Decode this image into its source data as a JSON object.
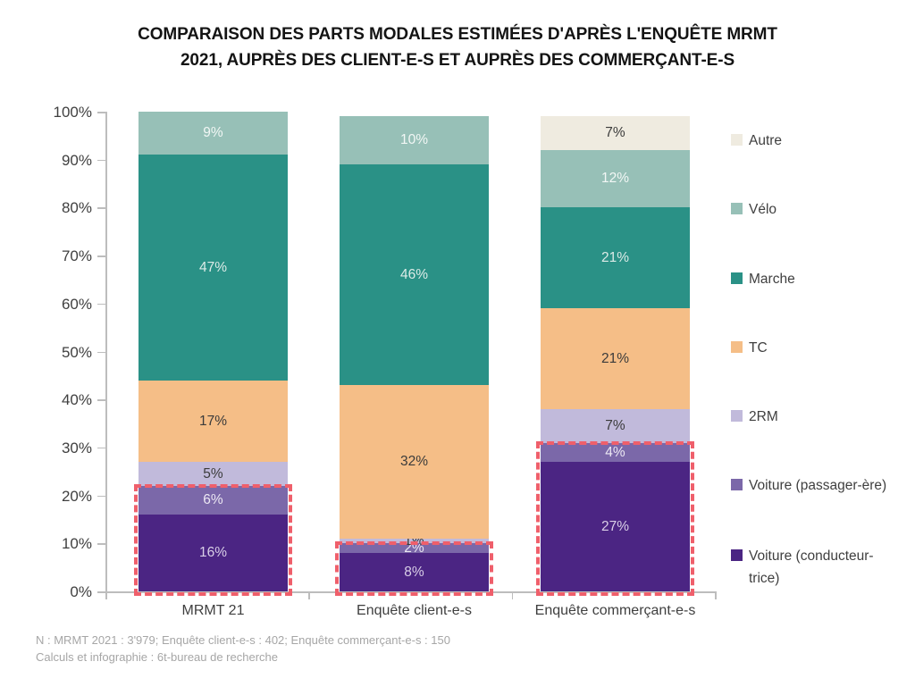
{
  "title": {
    "line1": "COMPARAISON DES PARTS MODALES ESTIMÉES D'APRÈS L'ENQUÊTE MRMT",
    "line2": "2021, AUPRÈS DES CLIENT-E-S ET AUPRÈS DES COMMERÇANT-E-S"
  },
  "chart_data": {
    "type": "bar",
    "stacked": true,
    "unit": "%",
    "categories": [
      "MRMT 21",
      "Enquête client-e-s",
      "Enquête commerçant-e-s"
    ],
    "series": [
      {
        "name": "Voiture (conducteur-trice)",
        "color": "#4b2583",
        "label_color": "#d9cfe7",
        "values": [
          16,
          8,
          27
        ]
      },
      {
        "name": "Voiture (passager-ère)",
        "color": "#7b68a9",
        "label_color": "#ece8f3",
        "values": [
          6,
          2,
          4
        ]
      },
      {
        "name": "2RM",
        "color": "#c1badb",
        "label_color": "#3b3b3b",
        "values": [
          5,
          1,
          7
        ]
      },
      {
        "name": "TC",
        "color": "#f5be87",
        "label_color": "#3b3b3b",
        "values": [
          17,
          32,
          21
        ]
      },
      {
        "name": "Marche",
        "color": "#2a9186",
        "label_color": "#dcebe7",
        "values": [
          47,
          46,
          21
        ]
      },
      {
        "name": "Vélo",
        "color": "#97c0b7",
        "label_color": "#f2f7f5",
        "values": [
          9,
          10,
          12
        ]
      },
      {
        "name": "Autre",
        "color": "#efebe0",
        "label_color": "#3b3b3b",
        "values": [
          0,
          0,
          7
        ]
      }
    ],
    "legend": [
      "Autre",
      "Vélo",
      "Marche",
      "TC",
      "2RM",
      "Voiture (passager-ère)",
      "Voiture (conducteur-trice)"
    ],
    "legend_position": "right",
    "y_axis": {
      "min": 0,
      "max": 100,
      "tick_step": 10,
      "tick_suffix": "%",
      "ticks": [
        "0%",
        "10%",
        "20%",
        "30%",
        "40%",
        "50%",
        "60%",
        "70%",
        "80%",
        "90%",
        "100%"
      ]
    },
    "grid": false,
    "highlight": {
      "color": "#ef5f6b",
      "style": "dashed-outline",
      "covers_series": [
        "Voiture (conducteur-trice)",
        "Voiture (passager-ère)"
      ],
      "extents_pct": [
        22,
        10,
        31
      ]
    }
  },
  "footnote": {
    "line1": "N : MRMT 2021 : 3'979; Enquête client-e-s : 402; Enquête commerçant-e-s : 150",
    "line2": "Calculs et infographie : 6t-bureau de recherche"
  }
}
